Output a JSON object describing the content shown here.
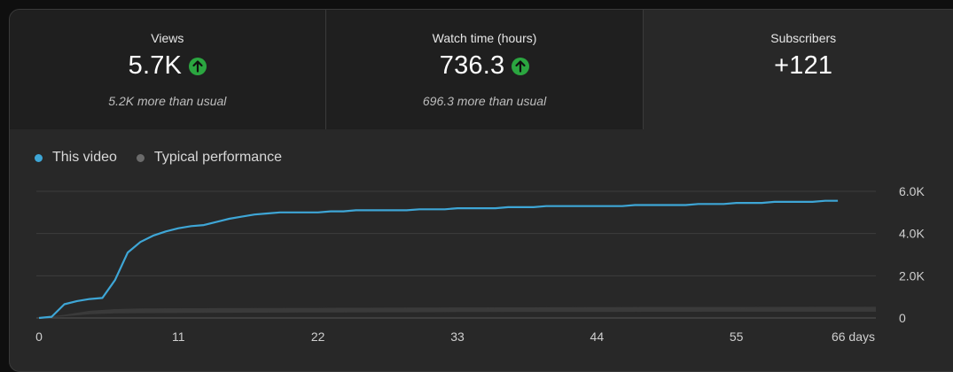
{
  "colors": {
    "this_video": "#3ea6d6",
    "typical": "#6b6b6b",
    "up_badge": "#2ba640"
  },
  "metrics": [
    {
      "label": "Views",
      "value": "5.7K",
      "trend_icon": "arrow-up-circle-icon",
      "note": "5.2K more than usual"
    },
    {
      "label": "Watch time (hours)",
      "value": "736.3",
      "trend_icon": "arrow-up-circle-icon",
      "note": "696.3 more than usual"
    },
    {
      "label": "Subscribers",
      "value": "+121",
      "note": ""
    }
  ],
  "legend": {
    "this_video": "This video",
    "typical": "Typical performance"
  },
  "chart_data": {
    "type": "line",
    "x_tick_labels": [
      "0",
      "11",
      "22",
      "33",
      "44",
      "55",
      "66 days"
    ],
    "x_ticks": [
      0,
      11,
      22,
      33,
      44,
      55,
      66
    ],
    "y_tick_labels": [
      "0",
      "2.0K",
      "4.0K",
      "6.0K"
    ],
    "y_ticks": [
      0,
      2000,
      4000,
      6000
    ],
    "xlim": [
      0,
      66
    ],
    "ylim": [
      0,
      6000
    ],
    "grid": true,
    "legend_position": "top-left",
    "series": [
      {
        "name": "This video",
        "x": [
          0,
          1,
          2,
          3,
          4,
          5,
          6,
          7,
          8,
          9,
          10,
          11,
          12,
          13,
          14,
          15,
          16,
          17,
          18,
          19,
          20,
          21,
          22,
          23,
          24,
          25,
          26,
          27,
          28,
          29,
          30,
          31,
          32,
          33,
          34,
          35,
          36,
          37,
          38,
          39,
          40,
          41,
          42,
          43,
          44,
          45,
          46,
          47,
          48,
          49,
          50,
          51,
          52,
          53,
          54,
          55,
          56,
          57,
          58,
          59,
          60,
          61,
          62,
          63
        ],
        "values": [
          0,
          60,
          650,
          800,
          900,
          950,
          1800,
          3100,
          3600,
          3900,
          4100,
          4250,
          4350,
          4400,
          4550,
          4700,
          4800,
          4900,
          4950,
          5000,
          5000,
          5000,
          5000,
          5050,
          5050,
          5100,
          5100,
          5100,
          5100,
          5100,
          5150,
          5150,
          5150,
          5200,
          5200,
          5200,
          5200,
          5250,
          5250,
          5250,
          5300,
          5300,
          5300,
          5300,
          5300,
          5300,
          5300,
          5350,
          5350,
          5350,
          5350,
          5350,
          5400,
          5400,
          5400,
          5450,
          5450,
          5450,
          5500,
          5500,
          5500,
          5500,
          5550,
          5550
        ]
      },
      {
        "name": "Typical performance",
        "x": [
          0,
          2,
          4,
          6,
          8,
          12,
          22,
          33,
          44,
          55,
          66
        ],
        "low": [
          0,
          80,
          180,
          220,
          230,
          240,
          260,
          280,
          290,
          300,
          300
        ],
        "high": [
          0,
          150,
          340,
          420,
          450,
          460,
          480,
          500,
          510,
          520,
          530
        ]
      }
    ]
  }
}
